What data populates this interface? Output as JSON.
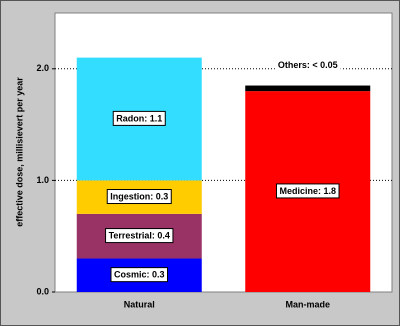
{
  "chart_data": {
    "type": "stacked_bar",
    "y_label": "effective dose, millisievert per year",
    "categories": [
      "Natural",
      "Man-made"
    ],
    "series": [
      {
        "color": "#0000ff",
        "values": [
          0.3,
          null
        ],
        "value_labels": [
          "Cosmic: 0.3",
          null
        ]
      },
      {
        "color": "#993366",
        "values": [
          0.4,
          null
        ],
        "value_labels": [
          "Terrestrial: 0.4",
          null
        ]
      },
      {
        "color": "#ffcc00",
        "values": [
          0.3,
          null
        ],
        "value_labels": [
          "Ingestion: 0.3",
          null
        ]
      },
      {
        "color": "#33ddff",
        "values": [
          1.1,
          null
        ],
        "value_labels": [
          "Radon: 1.1",
          null
        ]
      },
      {
        "color": "#ff0000",
        "values": [
          null,
          1.8
        ],
        "value_labels": [
          null,
          "Medicine: 1.8"
        ]
      },
      {
        "color": "#000000",
        "values": [
          null,
          0.05
        ],
        "value_labels": [
          null,
          "Others: < 0.05"
        ]
      }
    ],
    "ylim": [
      0,
      2.5
    ],
    "yticks": [
      {
        "value": 0,
        "label": "0.0"
      },
      {
        "value": 1,
        "label": "1.0"
      },
      {
        "value": 2,
        "label": "2.0"
      }
    ],
    "grid": true
  }
}
